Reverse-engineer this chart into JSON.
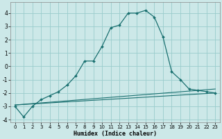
{
  "xlabel": "Humidex (Indice chaleur)",
  "background_color": "#cce8e8",
  "grid_color": "#99cccc",
  "line_color": "#1a7070",
  "xlim": [
    -0.5,
    23.5
  ],
  "ylim": [
    -4.2,
    4.8
  ],
  "xticks": [
    0,
    1,
    2,
    3,
    4,
    5,
    6,
    7,
    8,
    9,
    10,
    11,
    12,
    13,
    14,
    15,
    16,
    17,
    18,
    19,
    20,
    21,
    22,
    23
  ],
  "yticks": [
    -4,
    -3,
    -2,
    -1,
    0,
    1,
    2,
    3,
    4
  ],
  "series_main": {
    "x": [
      0,
      1,
      2,
      3,
      4,
      5,
      6,
      7,
      8,
      9,
      10,
      11,
      12,
      13,
      14,
      15,
      16,
      17,
      18,
      19,
      20,
      21,
      22,
      23
    ],
    "y": [
      -3.0,
      -3.8,
      -3.0,
      -2.5,
      -2.2,
      -1.9,
      -1.4,
      -0.7,
      0.4,
      0.4,
      1.5,
      2.9,
      3.1,
      4.0,
      4.0,
      4.2,
      3.7,
      2.2,
      -0.4,
      -1.0,
      -1.7,
      -1.8,
      -1.9,
      -2.0
    ]
  },
  "series_line1": {
    "x": [
      0,
      23
    ],
    "y": [
      -2.9,
      -2.0
    ]
  },
  "series_line2": {
    "x": [
      0,
      23
    ],
    "y": [
      -2.9,
      -1.7
    ]
  }
}
